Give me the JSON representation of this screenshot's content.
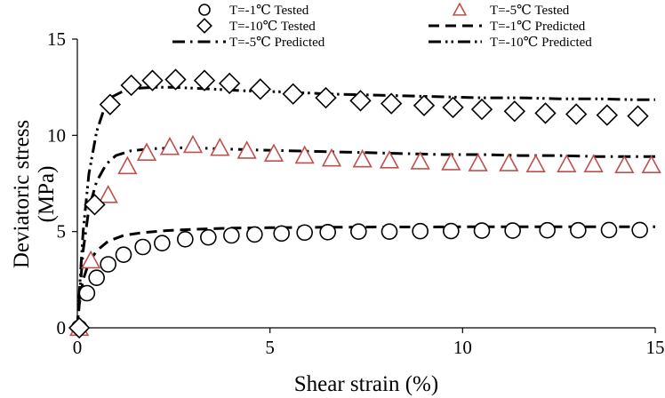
{
  "chart_data": {
    "type": "scatter",
    "xlabel": "Shear strain (%)",
    "ylabel": "Deviatoric stress (MPa)",
    "xlim": [
      0,
      15
    ],
    "ylim": [
      0,
      15
    ],
    "x_ticks": [
      "0",
      "5",
      "10",
      "15"
    ],
    "y_ticks": [
      "0",
      "5",
      "10",
      "15"
    ],
    "grid": false,
    "legend_position": "top",
    "series": [
      {
        "name": "T=-1℃ Tested",
        "style": "scatter",
        "marker": "circle",
        "color": "#000000",
        "x": [
          0.05,
          0.25,
          0.5,
          0.8,
          1.2,
          1.7,
          2.2,
          2.8,
          3.4,
          4.0,
          4.6,
          5.3,
          5.9,
          6.5,
          7.3,
          8.1,
          8.9,
          9.7,
          10.5,
          11.3,
          12.2,
          13.0,
          13.8,
          14.6
        ],
        "y": [
          0.0,
          1.8,
          2.6,
          3.3,
          3.8,
          4.2,
          4.4,
          4.6,
          4.7,
          4.8,
          4.85,
          4.9,
          4.95,
          4.97,
          5.0,
          5.0,
          5.02,
          5.03,
          5.05,
          5.05,
          5.07,
          5.07,
          5.08,
          5.08
        ]
      },
      {
        "name": "T=-5℃ Tested",
        "style": "scatter",
        "marker": "triangle",
        "color": "#c0504d",
        "x": [
          0.05,
          0.35,
          0.8,
          1.3,
          1.8,
          2.4,
          3.0,
          3.7,
          4.4,
          5.1,
          5.9,
          6.6,
          7.4,
          8.1,
          8.9,
          9.7,
          10.4,
          11.2,
          11.9,
          12.7,
          13.4,
          14.2,
          14.9
        ],
        "y": [
          0.0,
          3.5,
          6.9,
          8.4,
          9.1,
          9.4,
          9.5,
          9.35,
          9.2,
          9.05,
          8.95,
          8.8,
          8.75,
          8.7,
          8.65,
          8.6,
          8.55,
          8.55,
          8.5,
          8.5,
          8.5,
          8.45,
          8.45
        ]
      },
      {
        "name": "T=-10℃ Tested",
        "style": "scatter",
        "marker": "diamond",
        "color": "#000000",
        "x": [
          0.05,
          0.45,
          0.85,
          1.4,
          1.95,
          2.55,
          3.3,
          3.95,
          4.75,
          5.6,
          6.45,
          7.35,
          8.15,
          9.0,
          9.75,
          10.5,
          11.35,
          12.15,
          12.95,
          13.75,
          14.55
        ],
        "y": [
          0.0,
          6.4,
          11.6,
          12.6,
          12.85,
          12.9,
          12.85,
          12.7,
          12.4,
          12.15,
          11.95,
          11.8,
          11.65,
          11.55,
          11.45,
          11.35,
          11.25,
          11.15,
          11.1,
          11.05,
          11.0
        ]
      },
      {
        "name": "T=-1℃ Predicted",
        "style": "dashed",
        "color": "#000000",
        "x": [
          0.0,
          0.05,
          0.15,
          0.3,
          0.5,
          0.8,
          1.2,
          1.7,
          2.3,
          3.0,
          4.0,
          5.0,
          6.0,
          7.0,
          8.0,
          9.0,
          10.0,
          11.0,
          12.0,
          13.0,
          14.0,
          15.0
        ],
        "y": [
          0.0,
          1.2,
          2.5,
          3.4,
          4.0,
          4.5,
          4.8,
          4.95,
          5.05,
          5.12,
          5.18,
          5.2,
          5.22,
          5.23,
          5.24,
          5.24,
          5.25,
          5.25,
          5.25,
          5.25,
          5.25,
          5.25
        ]
      },
      {
        "name": "T=-5℃ Predicted",
        "style": "dashdot",
        "color": "#000000",
        "x": [
          0.0,
          0.05,
          0.15,
          0.3,
          0.5,
          0.75,
          1.0,
          1.4,
          1.9,
          2.5,
          3.0,
          3.7,
          4.5,
          5.5,
          6.5,
          7.5,
          8.5,
          9.5,
          10.5,
          11.5,
          12.5,
          13.5,
          14.5,
          15.0
        ],
        "y": [
          0.0,
          1.5,
          4.0,
          6.2,
          7.6,
          8.5,
          8.95,
          9.2,
          9.3,
          9.35,
          9.35,
          9.3,
          9.25,
          9.2,
          9.15,
          9.1,
          9.05,
          9.0,
          9.0,
          8.95,
          8.95,
          8.9,
          8.9,
          8.9
        ]
      },
      {
        "name": "T=-10℃ Predicted",
        "style": "dashdotdot",
        "color": "#000000",
        "x": [
          0.0,
          0.05,
          0.15,
          0.3,
          0.5,
          0.7,
          0.9,
          1.2,
          1.6,
          2.0,
          2.5,
          3.0,
          3.5,
          4.5,
          5.5,
          6.5,
          7.5,
          8.5,
          9.5,
          10.5,
          11.5,
          12.5,
          13.5,
          14.5,
          15.0
        ],
        "y": [
          0.0,
          1.8,
          5.0,
          8.0,
          10.2,
          11.4,
          12.0,
          12.3,
          12.45,
          12.5,
          12.5,
          12.45,
          12.4,
          12.3,
          12.25,
          12.15,
          12.1,
          12.05,
          12.0,
          11.95,
          11.95,
          11.9,
          11.9,
          11.85,
          11.85
        ]
      }
    ]
  }
}
